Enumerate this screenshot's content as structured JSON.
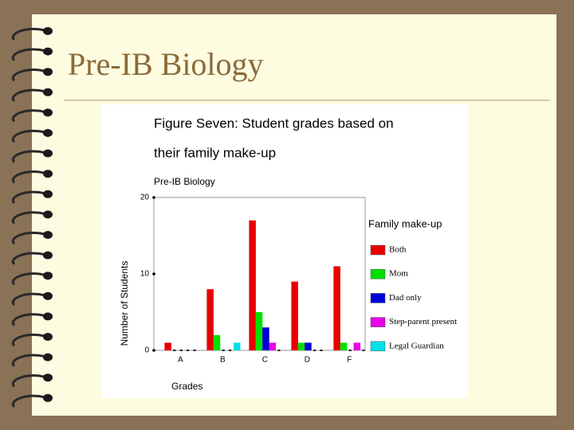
{
  "slide": {
    "title": "Pre-IB Biology"
  },
  "chart_data": {
    "type": "bar",
    "title": [
      "Figure Seven: Student grades based on",
      "their family make-up"
    ],
    "subtitle": "Pre-IB Biology",
    "x_label": "Grades",
    "y_label": "Number of Students",
    "legend_title": "Family make-up",
    "categories": [
      "A",
      "B",
      "C",
      "D",
      "F"
    ],
    "series": [
      {
        "name": "Both",
        "color": "#e80000",
        "values": [
          1,
          8,
          17,
          9,
          11
        ]
      },
      {
        "name": "Mom",
        "color": "#00e000",
        "values": [
          0,
          2,
          5,
          1,
          1
        ]
      },
      {
        "name": "Dad only",
        "color": "#0000d8",
        "values": [
          0,
          0,
          3,
          1,
          0
        ]
      },
      {
        "name": "Step-parent present",
        "color": "#e800e8",
        "values": [
          0,
          0,
          1,
          0,
          1
        ]
      },
      {
        "name": "Legal Guardian",
        "color": "#00e0e8",
        "values": [
          0,
          1,
          0,
          0,
          0
        ]
      }
    ],
    "ylim": [
      0,
      20
    ],
    "yticks": [
      0,
      10,
      20
    ],
    "legend": "right"
  }
}
